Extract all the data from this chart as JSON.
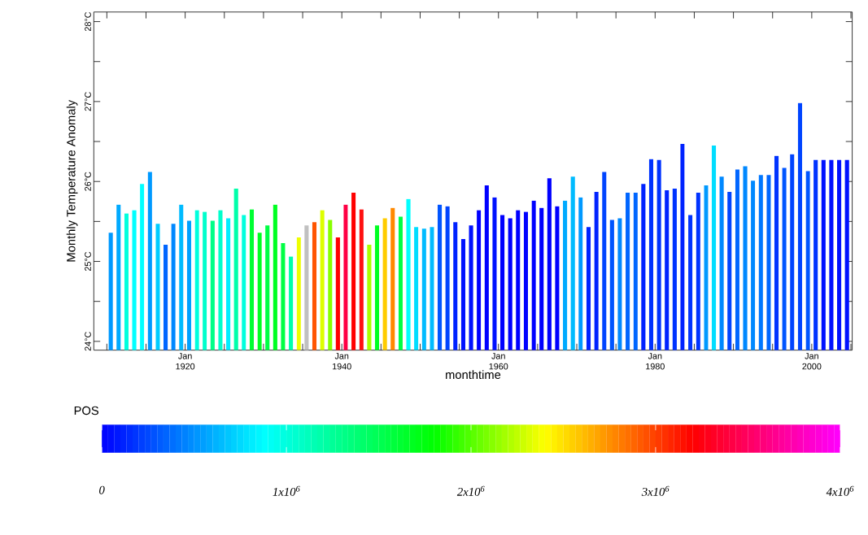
{
  "chart_data": {
    "type": "bar",
    "xlabel": "monthtime",
    "ylabel": "Monthly Temperature Anomaly",
    "x": [
      "1910-07",
      "1911-07",
      "1912-07",
      "1913-07",
      "1914-07",
      "1915-07",
      "1916-07",
      "1917-07",
      "1918-07",
      "1919-07",
      "1920-07",
      "1921-07",
      "1922-07",
      "1923-07",
      "1924-07",
      "1925-07",
      "1926-07",
      "1927-07",
      "1928-07",
      "1929-07",
      "1930-07",
      "1931-07",
      "1932-07",
      "1933-07",
      "1934-07",
      "1935-07",
      "1936-07",
      "1937-07",
      "1938-07",
      "1939-07",
      "1940-07",
      "1941-07",
      "1942-07",
      "1943-07",
      "1944-07",
      "1945-07",
      "1946-07",
      "1947-07",
      "1948-07",
      "1949-07",
      "1950-07",
      "1951-07",
      "1952-07",
      "1953-07",
      "1954-07",
      "1955-07",
      "1956-07",
      "1957-07",
      "1958-07",
      "1959-07",
      "1960-07",
      "1961-07",
      "1962-07",
      "1963-07",
      "1964-07",
      "1965-07",
      "1966-07",
      "1967-07",
      "1968-07",
      "1969-07",
      "1970-07",
      "1971-07",
      "1972-07",
      "1973-07",
      "1974-07",
      "1975-07",
      "1976-07",
      "1977-07",
      "1978-07",
      "1979-07",
      "1980-07",
      "1981-07",
      "1982-07",
      "1983-07",
      "1984-07",
      "1985-07",
      "1986-07",
      "1987-07",
      "1988-07",
      "1989-07",
      "1990-07",
      "1991-07",
      "1992-07",
      "1993-07",
      "1994-07",
      "1995-07",
      "1996-07",
      "1997-07",
      "1998-07",
      "1999-07",
      "2000-07",
      "2001-07",
      "2002-07",
      "2003-07",
      "2004-07"
    ],
    "values": [
      25.36,
      25.71,
      25.6,
      25.64,
      25.97,
      26.12,
      25.47,
      25.21,
      25.47,
      25.71,
      25.51,
      25.64,
      25.62,
      25.51,
      25.64,
      25.54,
      25.91,
      25.58,
      25.65,
      25.36,
      25.45,
      25.71,
      25.23,
      25.06,
      25.3,
      25.45,
      25.49,
      25.64,
      25.52,
      25.3,
      25.71,
      25.86,
      25.65,
      25.21,
      25.45,
      25.54,
      25.67,
      25.56,
      25.78,
      25.43,
      25.41,
      25.43,
      25.71,
      25.69,
      25.49,
      25.28,
      25.45,
      25.64,
      25.95,
      25.8,
      25.58,
      25.54,
      25.64,
      25.62,
      25.76,
      25.67,
      26.04,
      25.69,
      25.76,
      26.06,
      25.8,
      25.43,
      25.87,
      26.12,
      25.52,
      25.54,
      25.86,
      25.86,
      25.97,
      26.28,
      26.27,
      25.89,
      25.91,
      26.47,
      25.58,
      25.86,
      25.95,
      26.45,
      26.06,
      25.87,
      26.15,
      26.19,
      26.01,
      26.08,
      26.08,
      26.32,
      26.17,
      26.34,
      26.98,
      26.13,
      26.27,
      26.27,
      26.27,
      26.27,
      26.27
    ],
    "colors": [
      "#0099ff",
      "#00aaff",
      "#00ffdd",
      "#00ffff",
      "#00ffff",
      "#0099ff",
      "#00ccff",
      "#0066ff",
      "#0088ff",
      "#00bbff",
      "#00a0ff",
      "#00ffdd",
      "#00ffcc",
      "#00ff88",
      "#00ffcc",
      "#00eeff",
      "#00ffaa",
      "#00ffdd",
      "#00ff33",
      "#00ff22",
      "#00ff44",
      "#00ff22",
      "#00ff44",
      "#00ffaa",
      "#eeff00",
      "#c0c0c0",
      "#ff5500",
      "#ddff00",
      "#88ff00",
      "#ff0000",
      "#ff0044",
      "#ff0000",
      "#ff1111",
      "#aaff00",
      "#00ff22",
      "#ffcc00",
      "#ff8800",
      "#00ff44",
      "#00ffff",
      "#00ddff",
      "#00bbff",
      "#00bbff",
      "#0055ff",
      "#0044ff",
      "#0022ff",
      "#0011ff",
      "#0011ff",
      "#0000ff",
      "#0000ff",
      "#0011ff",
      "#0000ff",
      "#0000ff",
      "#0000ff",
      "#0000ff",
      "#0000ff",
      "#0000ff",
      "#0000ff",
      "#0000ff",
      "#00aaff",
      "#00bbff",
      "#0099ff",
      "#0022ff",
      "#0022ff",
      "#0044ff",
      "#0055ff",
      "#0088ff",
      "#0066ff",
      "#0066ff",
      "#0022ff",
      "#0033ff",
      "#0033ff",
      "#0022ff",
      "#0033ff",
      "#0022ff",
      "#0033ff",
      "#0033ff",
      "#0099ff",
      "#00ddff",
      "#0088ff",
      "#0044ff",
      "#0066ff",
      "#0088ff",
      "#0088ff",
      "#0077ff",
      "#0066ff",
      "#0033ff",
      "#0055ff",
      "#0044ff",
      "#0044ff",
      "#0055ff",
      "#0033ff",
      "#0011ff",
      "#0011ff",
      "#0011ff",
      "#0011ff"
    ],
    "xlim": [
      "1908-05",
      "2005-03"
    ],
    "ylim": [
      23.89,
      28.12
    ],
    "xticks": [
      {
        "value": "1910-01",
        "label": null
      },
      {
        "value": "1915-01",
        "label": null
      },
      {
        "value": "1920-01",
        "label": "Jan 1920"
      },
      {
        "value": "1925-01",
        "label": null
      },
      {
        "value": "1930-01",
        "label": null
      },
      {
        "value": "1935-01",
        "label": null
      },
      {
        "value": "1940-01",
        "label": "Jan 1940"
      },
      {
        "value": "1945-01",
        "label": null
      },
      {
        "value": "1950-01",
        "label": null
      },
      {
        "value": "1955-01",
        "label": null
      },
      {
        "value": "1960-01",
        "label": "Jan 1960"
      },
      {
        "value": "1965-01",
        "label": null
      },
      {
        "value": "1970-01",
        "label": null
      },
      {
        "value": "1975-01",
        "label": null
      },
      {
        "value": "1980-01",
        "label": "Jan 1980"
      },
      {
        "value": "1985-01",
        "label": null
      },
      {
        "value": "1990-01",
        "label": null
      },
      {
        "value": "1995-01",
        "label": null
      },
      {
        "value": "2000-01",
        "label": "Jan 2000"
      },
      {
        "value": "2005-01",
        "label": null
      }
    ],
    "yticks": [
      {
        "value": 24,
        "label": "24°C"
      },
      {
        "value": 24.5,
        "label": null
      },
      {
        "value": 25,
        "label": "25°C"
      },
      {
        "value": 25.5,
        "label": null
      },
      {
        "value": 26,
        "label": "26°C"
      },
      {
        "value": 26.5,
        "label": null
      },
      {
        "value": 27,
        "label": "27°C"
      },
      {
        "value": 27.5,
        "label": null
      },
      {
        "value": 28,
        "label": "28°C"
      }
    ],
    "clabel": "POS",
    "clim": [
      0,
      4000000
    ],
    "cticks": [
      {
        "value": 0,
        "label": "0"
      },
      {
        "value": 1000000,
        "label": "1x10$^{6}$"
      },
      {
        "value": 2000000,
        "label": "2x10$^{6}$"
      },
      {
        "value": 3000000,
        "label": "3x10$^{6}$"
      },
      {
        "value": 4000000,
        "label": "4x10$^{6}$"
      }
    ]
  }
}
